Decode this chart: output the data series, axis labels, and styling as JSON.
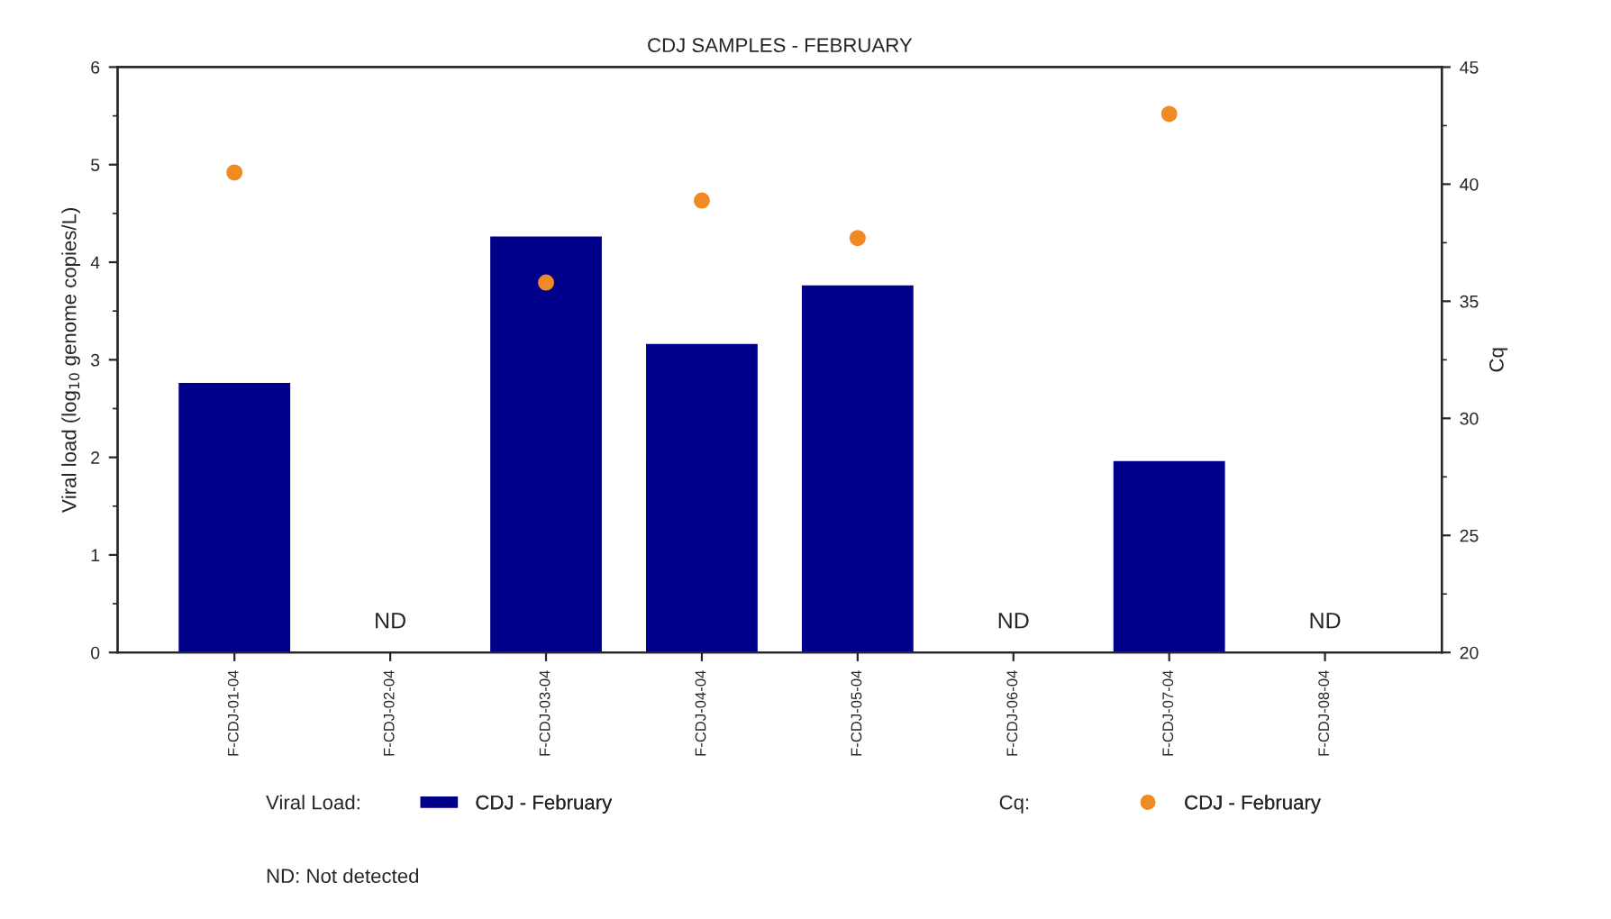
{
  "chart_data": {
    "type": "bar",
    "title": "CDJ SAMPLES - FEBRUARY",
    "xlabel": null,
    "ylabel": "Viral load (log$_{10}$ genome copies/L)",
    "y2label": "Cq",
    "categories": [
      "F-CDJ-01-04",
      "F-CDJ-02-04",
      "F-CDJ-03-04",
      "F-CDJ-04-04",
      "F-CDJ-05-04",
      "F-CDJ-06-04",
      "F-CDJ-07-04",
      "F-CDJ-08-04"
    ],
    "series": [
      {
        "name": "CDJ - February",
        "color": "#00008b",
        "values": [
          2.75,
          null,
          4.25,
          3.15,
          3.75,
          null,
          1.95,
          null
        ]
      },
      {
        "name": "CDJ - February",
        "type": "scatter",
        "axis": "y2",
        "marker": "circle",
        "color": "#f08a24",
        "values": [
          40.5,
          null,
          35.8,
          39.3,
          37.7,
          null,
          43.0,
          null
        ]
      }
    ],
    "ylim": [
      0,
      6
    ],
    "yticks": [
      0,
      1,
      2,
      3,
      4,
      5,
      6
    ],
    "y2lim": [
      20,
      45
    ],
    "y2ticks": [
      20,
      25,
      30,
      35,
      40,
      45
    ],
    "grid": false,
    "legend": "bottom",
    "annotations": [
      "ND",
      "ND",
      "ND",
      "Viral Load:",
      "Cq:",
      "ND: Not detected"
    ]
  }
}
